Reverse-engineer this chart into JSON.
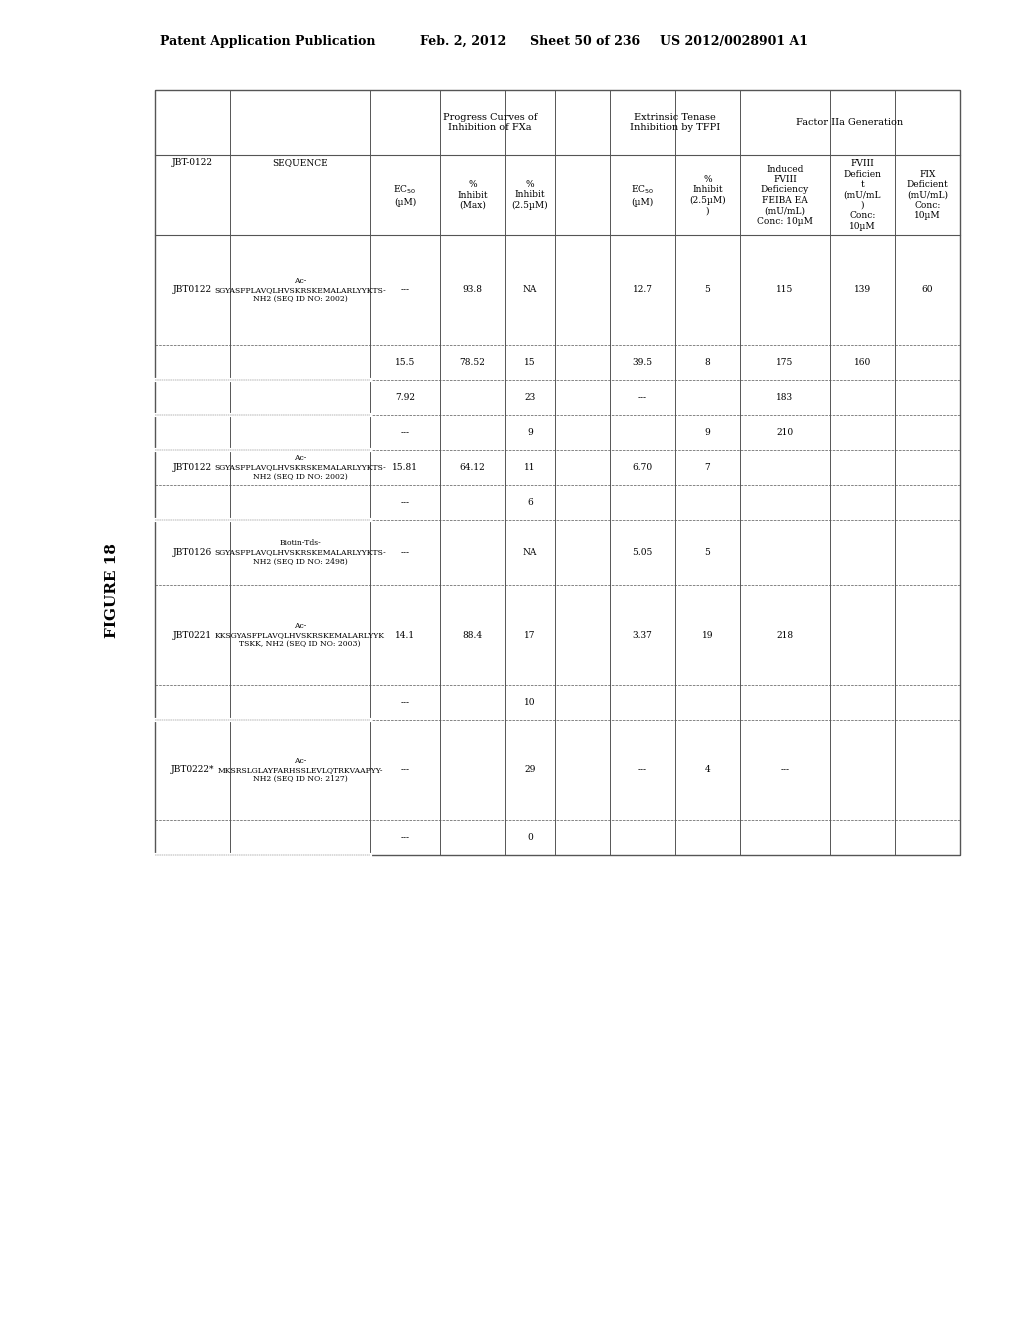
{
  "header_line1": "Patent Application Publication",
  "header_line2": "Feb. 2, 2012",
  "header_line3": "Sheet 50 of 236",
  "header_line4": "US 2012/0028901 A1",
  "figure_label": "FIGURE 18",
  "table": {
    "col_groups": [
      {
        "label": "",
        "span": 1
      },
      {
        "label": "",
        "span": 1
      },
      {
        "label": "Progress Curves of\nInhibition of FXa",
        "span": 4
      },
      {
        "label": "Extrinsic Tenase\nInhibition by TFPI",
        "span": 2
      },
      {
        "label": "Factor IIa Generation",
        "span": 3
      }
    ],
    "col_headers": [
      "JBT-0122",
      "SEQUENCE",
      "EC50\n(µM)",
      "%\nInhibit\n(Max)",
      "%\nInhibit\n(2.5µM)",
      "",
      "EC50\n(µM)",
      "%\nInhibit\n(2.5µM)\n)",
      "Induced\nFVIII\nDeficiency\nFEIBA EA\n(mU/mL)\nConc: 10µM",
      "FVIII\nDeficien\nt\n(mU/mL\n)\nConc:\n10µM",
      "FIX\nDeficient\n(mU/mL)\nConc:\n10µM"
    ],
    "rows": [
      {
        "id": "JBT0122",
        "sequence": "Ac-\nSGYASFPLAVQLHVSKRSKEMALARLYYKTS-\nNH2 (SEQ ID NO: 2002)",
        "ec50_fxa": "---",
        "inhibit_max": "93.8",
        "inhibit_2_5_fxa": "NA",
        "blank": "",
        "ec50_tfpi": "12.7",
        "inhibit_2_5_tfpi": "5",
        "induced_fviii": "115",
        "fviii_def": "139",
        "fix_def": "60"
      },
      {
        "id": "",
        "sequence": "",
        "ec50_fxa": "15.5",
        "inhibit_max": "78.52",
        "inhibit_2_5_fxa": "15",
        "blank": "",
        "ec50_tfpi": "39.5",
        "inhibit_2_5_tfpi": "8",
        "induced_fviii": "175",
        "fviii_def": "160",
        "fix_def": ""
      },
      {
        "id": "",
        "sequence": "",
        "ec50_fxa": "7.92",
        "inhibit_max": "",
        "inhibit_2_5_fxa": "23",
        "blank": "",
        "ec50_tfpi": "---",
        "inhibit_2_5_tfpi": "",
        "induced_fviii": "183",
        "fviii_def": "",
        "fix_def": ""
      },
      {
        "id": "",
        "sequence": "",
        "ec50_fxa": "---",
        "inhibit_max": "",
        "inhibit_2_5_fxa": "9",
        "blank": "",
        "ec50_tfpi": "",
        "inhibit_2_5_tfpi": "9",
        "induced_fviii": "210",
        "fviii_def": "",
        "fix_def": ""
      },
      {
        "id": "JBT0122",
        "sequence": "Ac-\nSGYASFPLAVQLHVSKRSKEMALARLYYKTS-\nNH2 (SEQ ID NO: 2002)",
        "ec50_fxa": "15.81",
        "inhibit_max": "64.12",
        "inhibit_2_5_fxa": "11",
        "blank": "",
        "ec50_tfpi": "6.70",
        "inhibit_2_5_tfpi": "7",
        "induced_fviii": "",
        "fviii_def": "",
        "fix_def": ""
      },
      {
        "id": "",
        "sequence": "",
        "ec50_fxa": "---",
        "inhibit_max": "",
        "inhibit_2_5_fxa": "6",
        "blank": "",
        "ec50_tfpi": "",
        "inhibit_2_5_tfpi": "",
        "induced_fviii": "",
        "fviii_def": "",
        "fix_def": ""
      },
      {
        "id": "JBT0126",
        "sequence": "Biotin-Tds-\nSGYASFPLAVQLHVSKRSKEMALARLYYKTS-\nNH2 (SEQ ID NO: 2498)",
        "ec50_fxa": "---",
        "inhibit_max": "",
        "inhibit_2_5_fxa": "NA",
        "blank": "",
        "ec50_tfpi": "5.05",
        "inhibit_2_5_tfpi": "5",
        "induced_fviii": "",
        "fviii_def": "",
        "fix_def": ""
      },
      {
        "id": "JBT0221",
        "sequence": "Ac-\nKKSGYASFPLAVQLHVSKRSKEMALARLYYK\nTSKK, NH2 (SEQ ID NO: 2003)",
        "ec50_fxa": "14.1",
        "inhibit_max": "88.4",
        "inhibit_2_5_fxa": "17",
        "blank": "",
        "ec50_tfpi": "3.37",
        "inhibit_2_5_tfpi": "19",
        "induced_fviii": "218",
        "fviii_def": "",
        "fix_def": ""
      },
      {
        "id": "",
        "sequence": "",
        "ec50_fxa": "---",
        "inhibit_max": "",
        "inhibit_2_5_fxa": "10",
        "blank": "",
        "ec50_tfpi": "",
        "inhibit_2_5_tfpi": "",
        "induced_fviii": "",
        "fviii_def": "",
        "fix_def": ""
      },
      {
        "id": "JBT0222*",
        "sequence": "Ac-\nMKSRSLGLAYFARHSSLEVLQTRKVAAPYY-\nNH2 (SEQ ID NO: 2127)",
        "ec50_fxa": "---",
        "inhibit_max": "",
        "inhibit_2_5_fxa": "29",
        "blank": "",
        "ec50_tfpi": "---",
        "inhibit_2_5_tfpi": "4",
        "induced_fviii": "---",
        "fviii_def": "",
        "fix_def": ""
      },
      {
        "id": "",
        "sequence": "",
        "ec50_fxa": "---",
        "inhibit_max": "",
        "inhibit_2_5_fxa": "0",
        "blank": "",
        "ec50_tfpi": "",
        "inhibit_2_5_tfpi": "",
        "induced_fviii": "",
        "fviii_def": "",
        "fix_def": ""
      }
    ]
  },
  "bg_color": "#ffffff",
  "text_color": "#000000",
  "table_line_color": "#555555"
}
